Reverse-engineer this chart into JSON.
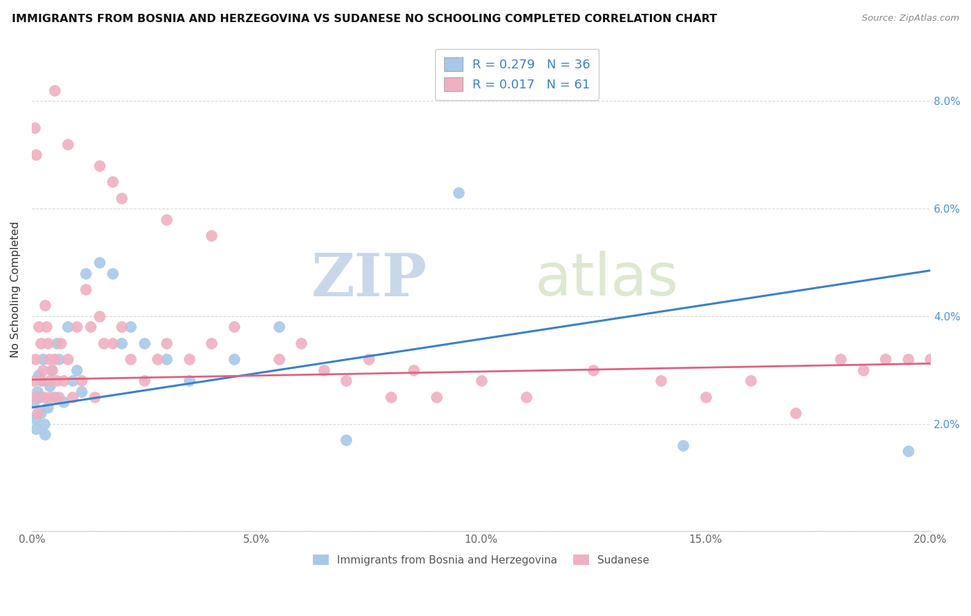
{
  "title": "IMMIGRANTS FROM BOSNIA AND HERZEGOVINA VS SUDANESE NO SCHOOLING COMPLETED CORRELATION CHART",
  "source": "Source: ZipAtlas.com",
  "ylabel": "No Schooling Completed",
  "series1_label": "Immigrants from Bosnia and Herzegovina",
  "series2_label": "Sudanese",
  "series1_color": "#a8c8e8",
  "series2_color": "#f0b0c0",
  "series1_line_color": "#3a80cc",
  "series2_line_color": "#e06080",
  "series1_R": 0.279,
  "series1_N": 36,
  "series2_R": 0.017,
  "series2_N": 61,
  "xlim": [
    0.0,
    20.0
  ],
  "ylim": [
    0.0,
    9.0
  ],
  "yticks": [
    0.0,
    2.0,
    4.0,
    6.0,
    8.0
  ],
  "ytick_labels": [
    "",
    "2.0%",
    "4.0%",
    "6.0%",
    "8.0%"
  ],
  "xticks": [
    0.0,
    5.0,
    10.0,
    15.0,
    20.0
  ],
  "xtick_labels": [
    "0.0%",
    "5.0%",
    "10.0%",
    "15.0%",
    "20.0%"
  ],
  "watermark_zip": "ZIP",
  "watermark_atlas": "atlas",
  "background_color": "#ffffff",
  "grid_color": "#d8d8d8",
  "series1_line_y0": 2.3,
  "series1_line_y1": 4.85,
  "series2_line_y0": 2.82,
  "series2_line_y1": 3.12,
  "series1_x": [
    0.05,
    0.08,
    0.1,
    0.12,
    0.15,
    0.18,
    0.2,
    0.22,
    0.25,
    0.28,
    0.3,
    0.35,
    0.4,
    0.45,
    0.5,
    0.55,
    0.6,
    0.7,
    0.8,
    0.9,
    1.0,
    1.1,
    1.2,
    1.5,
    1.8,
    2.0,
    2.2,
    2.5,
    3.0,
    3.5,
    4.5,
    5.5,
    7.0,
    9.5,
    14.5,
    19.5
  ],
  "series1_y": [
    2.4,
    2.1,
    1.9,
    2.6,
    2.9,
    2.5,
    2.2,
    2.8,
    3.2,
    2.0,
    1.8,
    2.3,
    2.7,
    3.0,
    2.5,
    3.5,
    3.2,
    2.4,
    3.8,
    2.8,
    3.0,
    2.6,
    4.8,
    5.0,
    4.8,
    3.5,
    3.8,
    3.5,
    3.2,
    2.8,
    3.2,
    3.8,
    1.7,
    6.3,
    1.6,
    1.5
  ],
  "series2_x": [
    0.05,
    0.08,
    0.1,
    0.12,
    0.15,
    0.2,
    0.22,
    0.25,
    0.28,
    0.3,
    0.32,
    0.35,
    0.38,
    0.4,
    0.42,
    0.45,
    0.5,
    0.55,
    0.6,
    0.65,
    0.7,
    0.8,
    0.9,
    1.0,
    1.1,
    1.2,
    1.3,
    1.4,
    1.5,
    1.6,
    1.8,
    2.0,
    2.2,
    2.5,
    2.8,
    3.0,
    3.5,
    4.0,
    4.5,
    5.5,
    6.0,
    6.5,
    7.0,
    7.5,
    8.0,
    8.5,
    9.0,
    10.0,
    11.0,
    12.5,
    14.0,
    15.0,
    16.0,
    17.0,
    18.0,
    18.5,
    19.0,
    19.5,
    20.0,
    0.06,
    0.09
  ],
  "series2_y": [
    2.8,
    3.2,
    2.5,
    2.2,
    3.8,
    3.5,
    2.8,
    3.0,
    2.5,
    4.2,
    3.8,
    3.5,
    3.2,
    2.8,
    2.5,
    3.0,
    3.2,
    2.8,
    2.5,
    3.5,
    2.8,
    3.2,
    2.5,
    3.8,
    2.8,
    4.5,
    3.8,
    2.5,
    4.0,
    3.5,
    3.5,
    3.8,
    3.2,
    2.8,
    3.2,
    3.5,
    3.2,
    3.5,
    3.8,
    3.2,
    3.5,
    3.0,
    2.8,
    3.2,
    2.5,
    3.0,
    2.5,
    2.8,
    2.5,
    3.0,
    2.8,
    2.5,
    2.8,
    2.2,
    3.2,
    3.0,
    3.2,
    3.2,
    3.2,
    7.5,
    7.0
  ],
  "series2_high_x": [
    0.5,
    0.8,
    1.5,
    1.8,
    2.0,
    3.0,
    4.0
  ],
  "series2_high_y": [
    8.2,
    7.2,
    6.8,
    6.5,
    6.2,
    5.8,
    5.5
  ]
}
